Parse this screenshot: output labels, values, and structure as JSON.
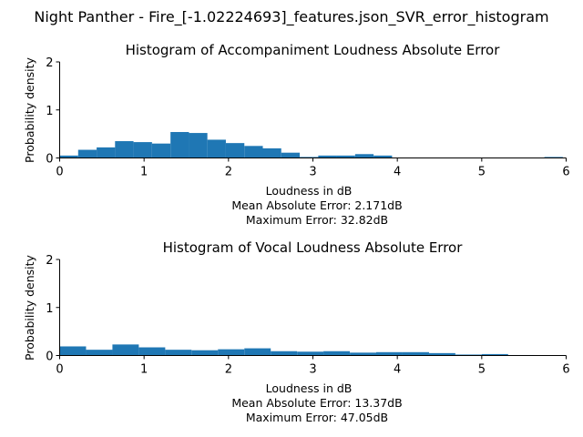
{
  "suptitle": "Night Panther - Fire_[-1.02224693]_features.json_SVR_error_histogram",
  "chart_data": [
    {
      "type": "bar",
      "title": "Histogram of Accompaniment Loudness Absolute Error",
      "xlabel": "Loudness in dB",
      "ylabel": "Probability density",
      "stats": [
        "Mean Absolute Error: 2.171dB",
        "Maximum Error: 32.82dB"
      ],
      "xlim": [
        0,
        6
      ],
      "ylim": [
        0,
        2
      ],
      "xticks": [
        "0",
        "1",
        "2",
        "3",
        "4",
        "5",
        "6"
      ],
      "yticks": [
        "0",
        "1",
        "2"
      ],
      "bin_width": 0.2188,
      "bins": [
        {
          "x": 0.0,
          "value": 0.05
        },
        {
          "x": 0.219,
          "value": 0.17
        },
        {
          "x": 0.438,
          "value": 0.22
        },
        {
          "x": 0.656,
          "value": 0.35
        },
        {
          "x": 0.875,
          "value": 0.33
        },
        {
          "x": 1.094,
          "value": 0.3
        },
        {
          "x": 1.313,
          "value": 0.54
        },
        {
          "x": 1.531,
          "value": 0.52
        },
        {
          "x": 1.75,
          "value": 0.38
        },
        {
          "x": 1.969,
          "value": 0.31
        },
        {
          "x": 2.188,
          "value": 0.25
        },
        {
          "x": 2.406,
          "value": 0.2
        },
        {
          "x": 2.625,
          "value": 0.11
        },
        {
          "x": 2.844,
          "value": 0.02
        },
        {
          "x": 3.063,
          "value": 0.05
        },
        {
          "x": 3.281,
          "value": 0.05
        },
        {
          "x": 3.5,
          "value": 0.08
        },
        {
          "x": 3.719,
          "value": 0.05
        },
        {
          "x": 5.742,
          "value": 0.02
        }
      ]
    },
    {
      "type": "bar",
      "title": "Histogram of Vocal Loudness Absolute Error",
      "xlabel": "Loudness in dB",
      "ylabel": "Probability density",
      "stats": [
        "Mean Absolute Error: 13.37dB",
        "Maximum Error: 47.05dB"
      ],
      "xlim": [
        0,
        6
      ],
      "ylim": [
        0,
        2
      ],
      "xticks": [
        "0",
        "1",
        "2",
        "3",
        "4",
        "5",
        "6"
      ],
      "yticks": [
        "0",
        "1",
        "2"
      ],
      "bin_width": 0.3125,
      "bins": [
        {
          "x": 0.0,
          "value": 0.19
        },
        {
          "x": 0.313,
          "value": 0.12
        },
        {
          "x": 0.625,
          "value": 0.23
        },
        {
          "x": 0.938,
          "value": 0.17
        },
        {
          "x": 1.25,
          "value": 0.12
        },
        {
          "x": 1.563,
          "value": 0.11
        },
        {
          "x": 1.875,
          "value": 0.13
        },
        {
          "x": 2.188,
          "value": 0.15
        },
        {
          "x": 2.5,
          "value": 0.09
        },
        {
          "x": 2.813,
          "value": 0.08
        },
        {
          "x": 3.125,
          "value": 0.09
        },
        {
          "x": 3.438,
          "value": 0.06
        },
        {
          "x": 3.75,
          "value": 0.07
        },
        {
          "x": 4.063,
          "value": 0.07
        },
        {
          "x": 4.375,
          "value": 0.05
        },
        {
          "x": 4.688,
          "value": 0.02
        },
        {
          "x": 5.0,
          "value": 0.03
        },
        {
          "x": 5.313,
          "value": 0.01
        },
        {
          "x": 5.938,
          "value": 0.01
        }
      ]
    }
  ]
}
